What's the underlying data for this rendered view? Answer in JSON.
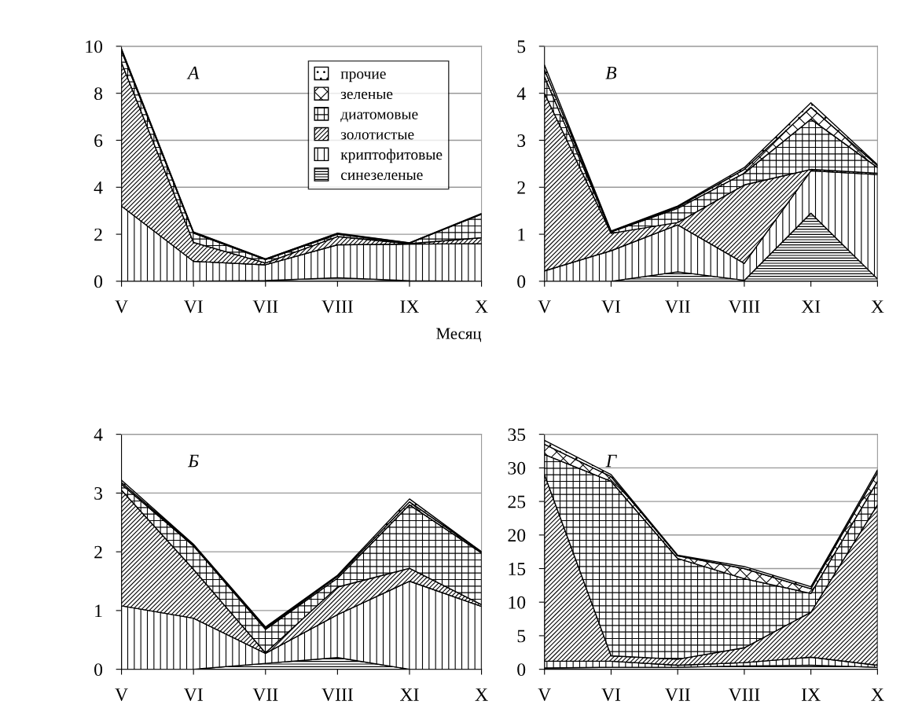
{
  "chart_data": [
    {
      "type": "area",
      "stacked": true,
      "title": "А",
      "xlabel": "Месяц",
      "categories": [
        "V",
        "VI",
        "VII",
        "VIII",
        "IX",
        "X"
      ],
      "ylim": [
        0,
        10
      ],
      "yticks": [
        0,
        2,
        4,
        6,
        8,
        10
      ],
      "grid": "y",
      "legend": "top right",
      "series": [
        {
          "name": "синезеленые",
          "color": "#000000",
          "values": [
            0,
            0,
            0.03,
            0.15,
            0.02,
            0
          ]
        },
        {
          "name": "криптофитовые",
          "color": "#000000",
          "values": [
            3.2,
            0.85,
            0.67,
            1.4,
            1.56,
            1.6
          ]
        },
        {
          "name": "золотистые",
          "color": "#000000",
          "values": [
            6.1,
            0.8,
            0.08,
            0.35,
            0.02,
            0.25
          ]
        },
        {
          "name": "диатомовые",
          "color": "#000000",
          "values": [
            0.5,
            0.4,
            0.14,
            0.1,
            0.02,
            1.0
          ]
        },
        {
          "name": "зеленые",
          "color": "#000000",
          "values": [
            0.05,
            0.03,
            0.02,
            0.03,
            0.01,
            0.02
          ]
        },
        {
          "name": "прочие",
          "color": "#000000",
          "values": [
            0.05,
            0.02,
            0.01,
            0.02,
            0.01,
            0.01
          ]
        }
      ]
    },
    {
      "type": "area",
      "stacked": true,
      "title": "В",
      "categories": [
        "V",
        "VI",
        "VII",
        "VIII",
        "XI",
        "X"
      ],
      "ylim": [
        0,
        5
      ],
      "yticks": [
        0,
        1,
        2,
        3,
        4,
        5
      ],
      "grid": "y",
      "series": [
        {
          "color": "#000000",
          "values": [
            0,
            0,
            0.2,
            0.02,
            1.45,
            0.05
          ]
        },
        {
          "color": "#000000",
          "values": [
            0.22,
            0.65,
            1.0,
            0.36,
            0.9,
            2.22
          ]
        },
        {
          "color": "#000000",
          "values": [
            3.78,
            0.37,
            0.05,
            1.67,
            0.03,
            0.03
          ]
        },
        {
          "color": "#000000",
          "values": [
            0.35,
            0.03,
            0.3,
            0.25,
            1.07,
            0.12
          ]
        },
        {
          "color": "#000000",
          "values": [
            0.15,
            0.01,
            0.03,
            0.08,
            0.25,
            0.04
          ]
        },
        {
          "color": "#000000",
          "values": [
            0.1,
            0.01,
            0.02,
            0.04,
            0.1,
            0.02
          ]
        }
      ]
    },
    {
      "type": "area",
      "stacked": true,
      "title": "Б",
      "categories": [
        "V",
        "VI",
        "VII",
        "VIII",
        "XI",
        "X"
      ],
      "ylim": [
        0,
        4
      ],
      "yticks": [
        0,
        1,
        2,
        3,
        4
      ],
      "grid": "y",
      "series": [
        {
          "color": "#000000",
          "values": [
            0,
            0,
            0.1,
            0.2,
            0,
            0
          ]
        },
        {
          "color": "#000000",
          "values": [
            1.08,
            0.87,
            0.17,
            0.73,
            1.5,
            1.07
          ]
        },
        {
          "color": "#000000",
          "values": [
            1.97,
            0.83,
            0.01,
            0.47,
            0.22,
            0.03
          ]
        },
        {
          "color": "#000000",
          "values": [
            0.1,
            0.4,
            0.4,
            0.15,
            1.08,
            0.88
          ]
        },
        {
          "color": "#000000",
          "values": [
            0.03,
            0.02,
            0.02,
            0.03,
            0.05,
            0.02
          ]
        },
        {
          "color": "#000000",
          "values": [
            0.04,
            0.01,
            0.02,
            0.02,
            0.05,
            0.0
          ]
        }
      ]
    },
    {
      "type": "area",
      "stacked": true,
      "title": "Г",
      "categories": [
        "V",
        "VI",
        "VII",
        "VIII",
        "IX",
        "X"
      ],
      "ylim": [
        0,
        35
      ],
      "yticks": [
        0,
        5,
        10,
        15,
        20,
        25,
        30,
        35
      ],
      "grid": "y",
      "series": [
        {
          "color": "#000000",
          "values": [
            0.2,
            0.3,
            0.3,
            0.5,
            0.6,
            0.3
          ]
        },
        {
          "color": "#000000",
          "values": [
            1.0,
            0.9,
            0.3,
            0.5,
            1.2,
            0.3
          ]
        },
        {
          "color": "#000000",
          "values": [
            27.8,
            0.8,
            0.9,
            2.2,
            6.7,
            23.9
          ]
        },
        {
          "color": "#000000",
          "values": [
            3.0,
            26.0,
            15.0,
            10.3,
            2.8,
            3.5
          ]
        },
        {
          "color": "#000000",
          "values": [
            1.5,
            0.7,
            0.4,
            1.5,
            0.7,
            1.3
          ]
        },
        {
          "color": "#000000",
          "values": [
            0.6,
            0.3,
            0.1,
            0.3,
            0.3,
            0.4
          ]
        }
      ]
    }
  ]
}
